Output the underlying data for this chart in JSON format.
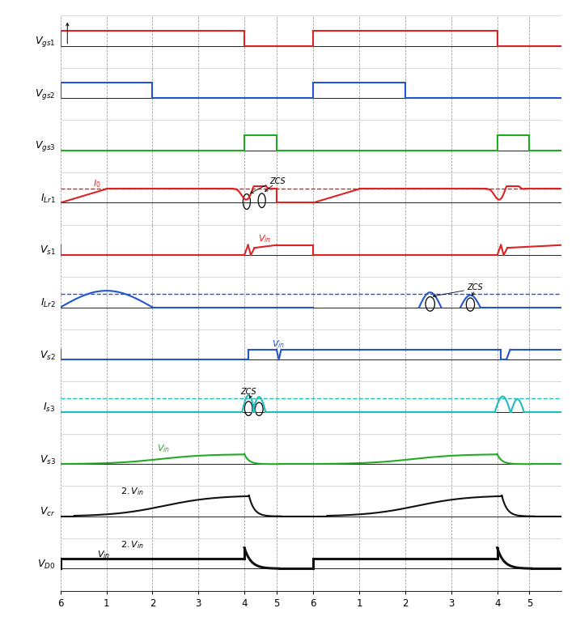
{
  "colors": {
    "vgs1": "#dd2222",
    "vgs2": "#2255cc",
    "vgs3": "#22aa22",
    "ILr1": "#dd2222",
    "Vs1": "#dd2222",
    "ILr2": "#2255cc",
    "Vs2": "#2255cc",
    "Is3": "#22bbbb",
    "Vs3": "#22aa22",
    "Vcr": "#111111",
    "VD0": "#111111"
  },
  "row_labels": [
    "$V_{gs1}$",
    "$V_{gs2}$",
    "$V_{gs3}$",
    "$I_{Lr1}$",
    "$V_{s1}$",
    "$I_{Lr2}$",
    "$V_{s2}$",
    "$I_{s3}$",
    "$V_{s3}$",
    "$V_{cr}$",
    "$V_{D0}$"
  ],
  "tick_labels": [
    "6",
    "1",
    "2",
    "3",
    "4",
    "5",
    "6",
    "1",
    "2",
    "3",
    "4",
    "5"
  ],
  "T": [
    0.0,
    1.0,
    2.0,
    3.0,
    4.0,
    4.7,
    5.5,
    6.5,
    7.5,
    8.5,
    9.5,
    10.2
  ],
  "xmax": 10.9,
  "hi": 0.78,
  "lo": 0.5,
  "mid": 0.5,
  "I0_level": 0.75,
  "Vin_level": 0.68,
  "TwoVin_level": 0.88
}
